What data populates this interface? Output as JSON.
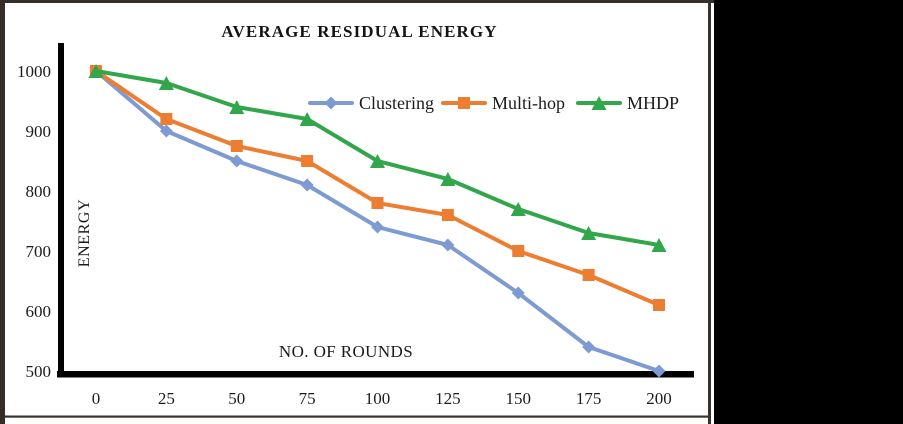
{
  "figure": {
    "title": "AVERAGE RESIDUAL ENERGY",
    "x_axis_title": "NO. OF ROUNDS",
    "y_axis_title": "ENERGY"
  },
  "chart_data": {
    "type": "line",
    "title": "AVERAGE RESIDUAL ENERGY",
    "xlabel": "NO. OF ROUNDS",
    "ylabel": "ENERGY",
    "x": [
      0,
      25,
      50,
      75,
      100,
      125,
      150,
      175,
      200
    ],
    "y_ticks": [
      500,
      600,
      700,
      800,
      900,
      1000
    ],
    "ylim": [
      500,
      1000
    ],
    "grid": false,
    "legend_position": "inside-top-center-inline",
    "series": [
      {
        "name": "Clustering",
        "marker": "diamond",
        "color": "#7D9BD2",
        "values": [
          1000,
          900,
          850,
          810,
          740,
          710,
          630,
          540,
          500
        ]
      },
      {
        "name": "Multi-hop",
        "marker": "square",
        "color": "#ED7D31",
        "values": [
          1000,
          920,
          875,
          850,
          780,
          760,
          700,
          660,
          610
        ]
      },
      {
        "name": "MHDP",
        "marker": "triangle",
        "color": "#32A64A",
        "values": [
          1000,
          980,
          940,
          920,
          850,
          820,
          770,
          730,
          710
        ]
      }
    ],
    "colors": {
      "axis": "#000000",
      "frame": "#3a322c",
      "text": "#1b1b1b"
    }
  }
}
